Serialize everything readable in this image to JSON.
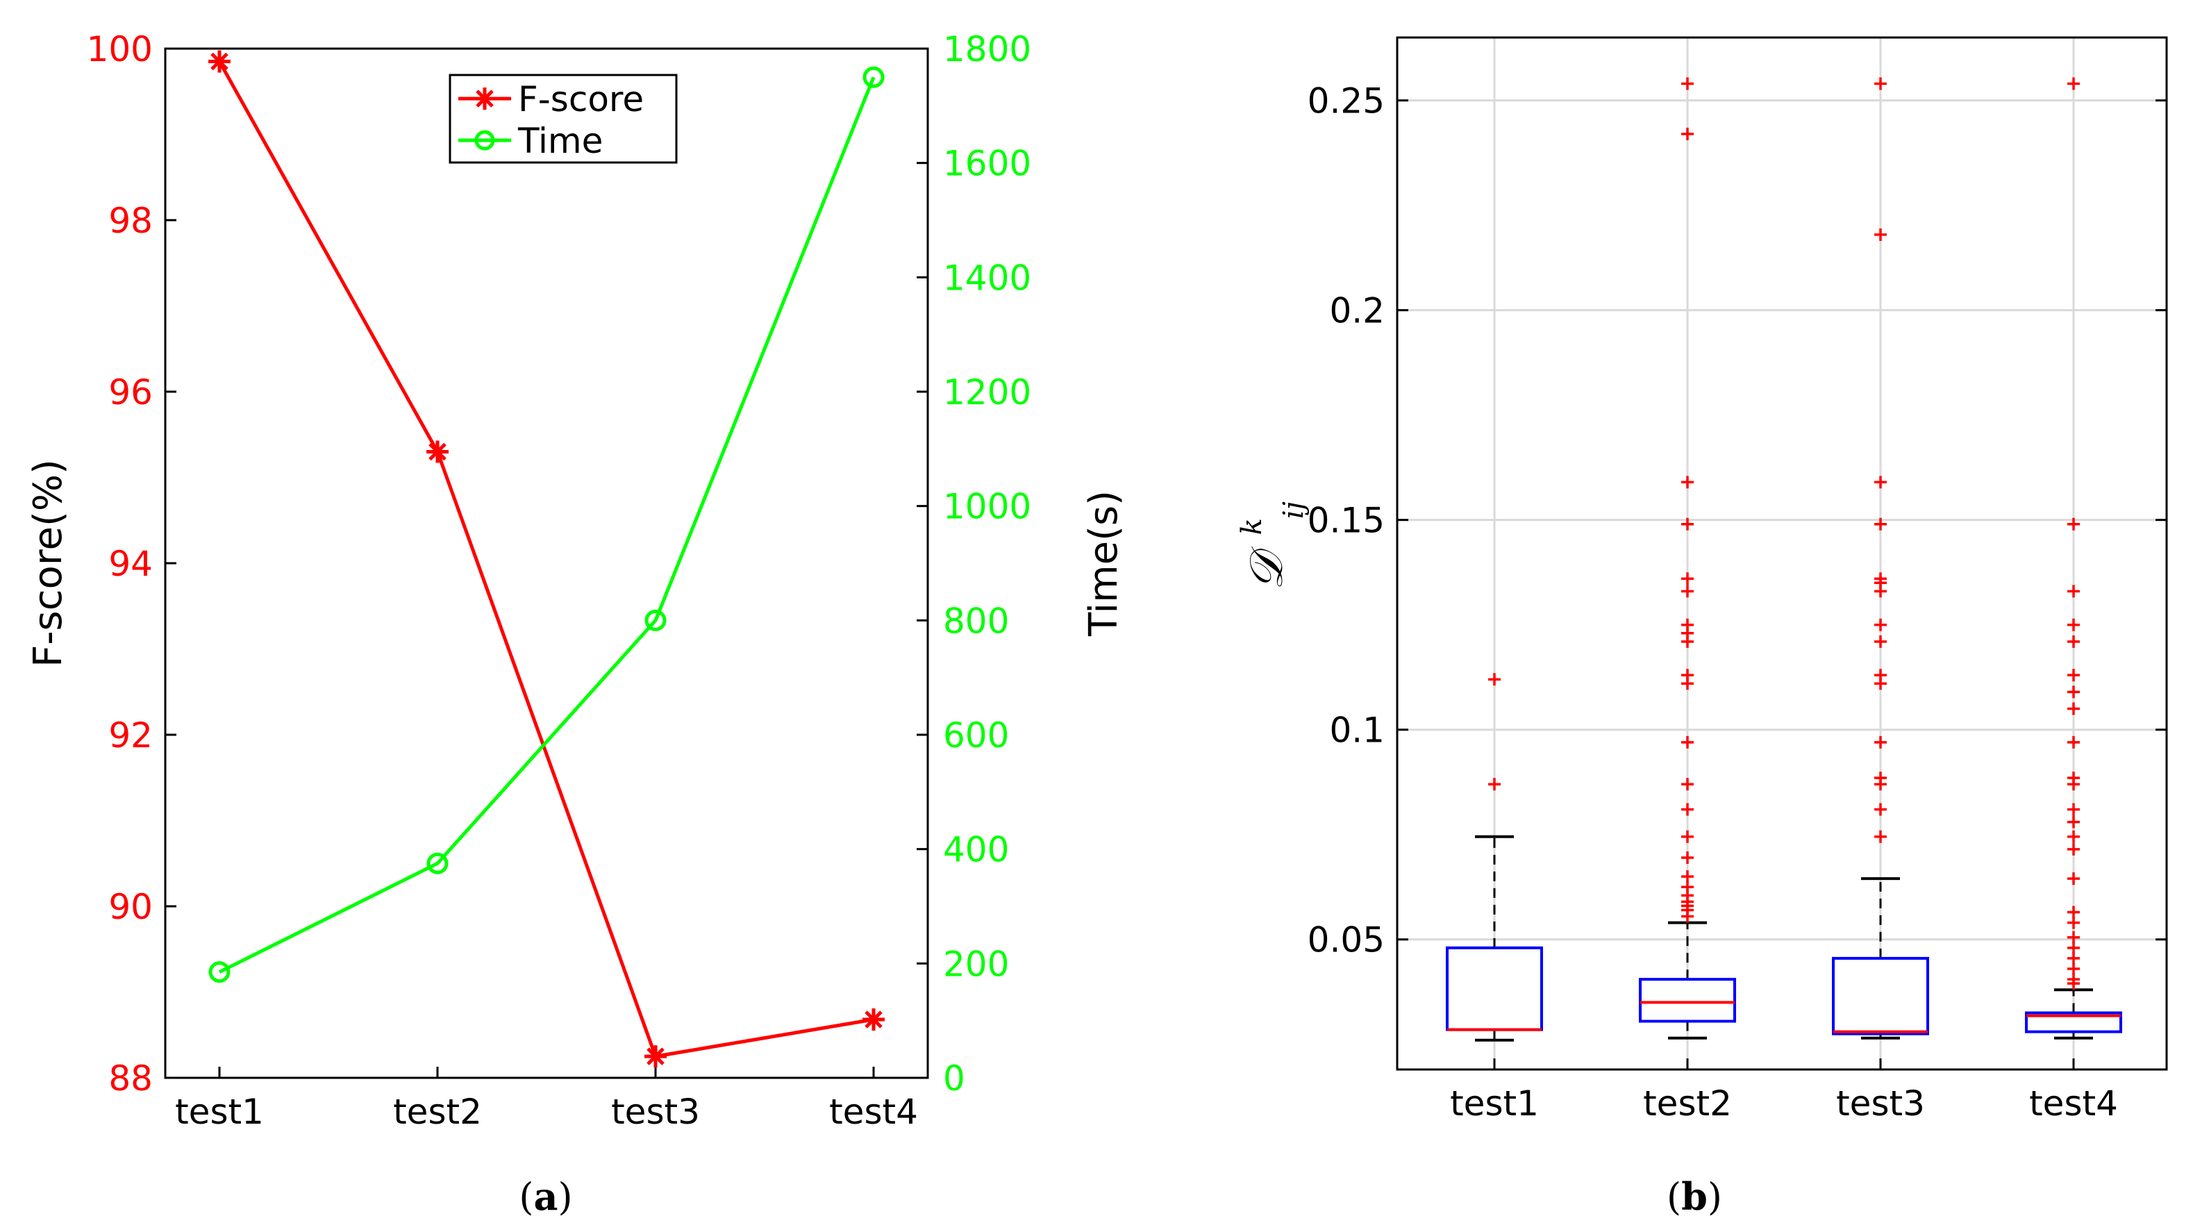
{
  "colors": {
    "fscore": "#ff0000",
    "time": "#00ff00",
    "box": "#0000ff",
    "median": "#ff0000",
    "outlier": "#ff0000",
    "whisker": "#000000",
    "grid": "#d9d9d9",
    "axis": "#000000"
  },
  "chart_data": [
    {
      "type": "line",
      "caption_paren_open": "(",
      "caption_letter": "a",
      "caption_paren_close": ")",
      "categories": [
        "test1",
        "test2",
        "test3",
        "test4"
      ],
      "left_axis": {
        "label": "F-score(%)",
        "ylim": [
          88,
          100
        ],
        "ticks": [
          "88",
          "90",
          "92",
          "94",
          "96",
          "98",
          "100"
        ]
      },
      "right_axis": {
        "label": "Time(s)",
        "ylim": [
          0,
          1800
        ],
        "ticks": [
          "0",
          "200",
          "400",
          "600",
          "800",
          "1000",
          "1200",
          "1400",
          "1600",
          "1800"
        ]
      },
      "series": [
        {
          "name": "F-score",
          "axis": "left",
          "marker": "asterisk",
          "values": [
            99.85,
            95.3,
            88.25,
            88.68
          ]
        },
        {
          "name": "Time",
          "axis": "right",
          "marker": "circle",
          "values": [
            185,
            375,
            800,
            1750
          ]
        }
      ],
      "legend": {
        "position": "top-center",
        "entries": [
          "F-score",
          "Time"
        ]
      },
      "grid": false
    },
    {
      "type": "box",
      "caption_paren_open": "(",
      "caption_letter": "b",
      "caption_paren_close": ")",
      "categories": [
        "test1",
        "test2",
        "test3",
        "test4"
      ],
      "ylabel": "𝒟",
      "ylabel_superscript": "k",
      "ylabel_subscript": "ij",
      "ylim": [
        0.019,
        0.265
      ],
      "yticks": [
        {
          "value": 0.05,
          "label": "0.05"
        },
        {
          "value": 0.1,
          "label": "0.1"
        },
        {
          "value": 0.15,
          "label": "0.15"
        },
        {
          "value": 0.2,
          "label": "0.2"
        },
        {
          "value": 0.25,
          "label": "0.25"
        }
      ],
      "grid": true,
      "boxes": [
        {
          "name": "test1",
          "whisker_low": 0.026,
          "q1": 0.0285,
          "median": 0.0285,
          "q3": 0.048,
          "whisker_high": 0.0745,
          "outliers": [
            0.087,
            0.112
          ]
        },
        {
          "name": "test2",
          "whisker_low": 0.0265,
          "q1": 0.0305,
          "median": 0.035,
          "q3": 0.0405,
          "whisker_high": 0.054,
          "outliers": [
            0.0555,
            0.057,
            0.058,
            0.059,
            0.0605,
            0.0625,
            0.065,
            0.0695,
            0.0745,
            0.081,
            0.087,
            0.097,
            0.111,
            0.113,
            0.121,
            0.123,
            0.125,
            0.133,
            0.136,
            0.149,
            0.159,
            0.242,
            0.254
          ]
        },
        {
          "name": "test3",
          "whisker_low": 0.0265,
          "q1": 0.0275,
          "median": 0.028,
          "q3": 0.0455,
          "whisker_high": 0.0645,
          "outliers": [
            0.0745,
            0.081,
            0.087,
            0.0885,
            0.097,
            0.111,
            0.113,
            0.121,
            0.125,
            0.133,
            0.135,
            0.136,
            0.149,
            0.159,
            0.218,
            0.254
          ]
        },
        {
          "name": "test4",
          "whisker_low": 0.0265,
          "q1": 0.028,
          "median": 0.0318,
          "q3": 0.0325,
          "whisker_high": 0.038,
          "outliers": [
            0.0395,
            0.0405,
            0.043,
            0.0455,
            0.048,
            0.0505,
            0.054,
            0.0565,
            0.0645,
            0.0715,
            0.0745,
            0.078,
            0.081,
            0.087,
            0.0885,
            0.097,
            0.105,
            0.109,
            0.113,
            0.121,
            0.125,
            0.133,
            0.149,
            0.254
          ]
        }
      ]
    }
  ]
}
